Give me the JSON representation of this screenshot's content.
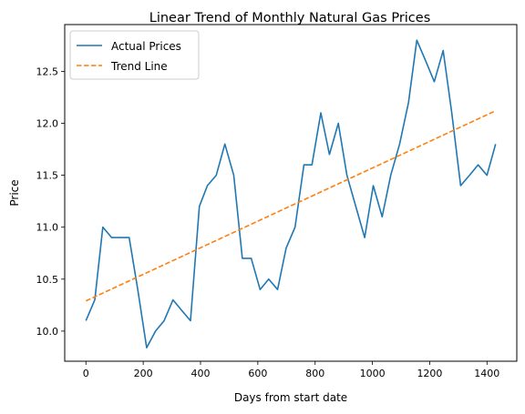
{
  "chart_data": {
    "type": "line",
    "title": "Linear Trend of Monthly Natural Gas Prices",
    "xlabel": "Days from start date",
    "ylabel": "Price",
    "xlim": [
      -74,
      1504
    ],
    "ylim": [
      9.71,
      12.95
    ],
    "x_ticks": [
      0,
      200,
      400,
      600,
      800,
      1000,
      1200,
      1400
    ],
    "y_ticks": [
      10.0,
      10.5,
      11.0,
      11.5,
      12.0,
      12.5
    ],
    "grid": false,
    "legend_position": "top-left",
    "series": [
      {
        "name": "Actual Prices",
        "style": "solid",
        "color": "#1f77b4",
        "points": [
          [
            0,
            10.1
          ],
          [
            31,
            10.3
          ],
          [
            59,
            11.0
          ],
          [
            90,
            10.9
          ],
          [
            120,
            10.9
          ],
          [
            151,
            10.9
          ],
          [
            181,
            10.4
          ],
          [
            212,
            9.84
          ],
          [
            243,
            10.0
          ],
          [
            273,
            10.1
          ],
          [
            304,
            10.3
          ],
          [
            334,
            10.2
          ],
          [
            365,
            10.1
          ],
          [
            396,
            11.2
          ],
          [
            424,
            11.4
          ],
          [
            455,
            11.5
          ],
          [
            485,
            11.8
          ],
          [
            516,
            11.5
          ],
          [
            546,
            10.7
          ],
          [
            577,
            10.7
          ],
          [
            608,
            10.4
          ],
          [
            638,
            10.5
          ],
          [
            669,
            10.4
          ],
          [
            699,
            10.8
          ],
          [
            730,
            11.0
          ],
          [
            761,
            11.6
          ],
          [
            789,
            11.6
          ],
          [
            820,
            12.1
          ],
          [
            850,
            11.7
          ],
          [
            881,
            12.0
          ],
          [
            911,
            11.5
          ],
          [
            942,
            11.2
          ],
          [
            973,
            10.9
          ],
          [
            1003,
            11.4
          ],
          [
            1034,
            11.1
          ],
          [
            1064,
            11.5
          ],
          [
            1095,
            11.8
          ],
          [
            1126,
            12.2
          ],
          [
            1155,
            12.8
          ],
          [
            1186,
            12.6
          ],
          [
            1216,
            12.4
          ],
          [
            1247,
            12.7
          ],
          [
            1277,
            12.1
          ],
          [
            1308,
            11.4
          ],
          [
            1339,
            11.5
          ],
          [
            1369,
            11.6
          ],
          [
            1400,
            11.5
          ],
          [
            1430,
            11.8
          ]
        ]
      },
      {
        "name": "Trend Line",
        "style": "dashed",
        "color": "#ff7f0e",
        "points": [
          [
            0,
            10.29
          ],
          [
            1430,
            12.12
          ]
        ]
      }
    ]
  }
}
